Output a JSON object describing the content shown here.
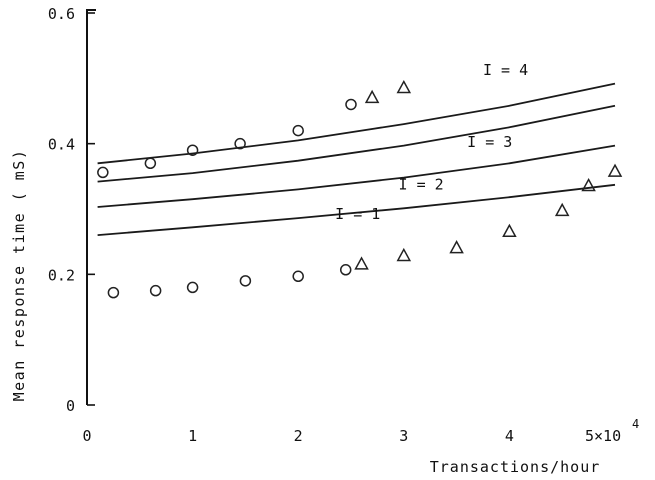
{
  "chart_data": {
    "type": "scatter",
    "xlabel": "Transactions/hour",
    "ylabel": "Mean response time ( mS)",
    "xlim": [
      0,
      5
    ],
    "ylim": [
      0,
      0.6
    ],
    "x_scale_label": "5×10",
    "x_scale_exponent": "4",
    "x_ticks": [
      {
        "value": 0,
        "label": "0"
      },
      {
        "value": 1,
        "label": "1"
      },
      {
        "value": 2,
        "label": "2"
      },
      {
        "value": 3,
        "label": "3"
      },
      {
        "value": 4,
        "label": "4"
      }
    ],
    "y_ticks": [
      {
        "value": 0,
        "label": "0"
      },
      {
        "value": 0.2,
        "label": "0.2"
      },
      {
        "value": 0.4,
        "label": "0.4"
      },
      {
        "value": 0.6,
        "label": "0.6"
      }
    ],
    "grid": false,
    "curves": [
      {
        "name": "I = 1",
        "label_at": [
          2.35,
          0.285
        ],
        "x": [
          0.1,
          1,
          2,
          3,
          4,
          5
        ],
        "y": [
          0.26,
          0.272,
          0.286,
          0.301,
          0.318,
          0.337
        ]
      },
      {
        "name": "I = 2",
        "label_at": [
          2.95,
          0.33
        ],
        "x": [
          0.1,
          1,
          2,
          3,
          4,
          5
        ],
        "y": [
          0.303,
          0.315,
          0.33,
          0.348,
          0.37,
          0.397
        ]
      },
      {
        "name": "I = 3",
        "label_at": [
          3.6,
          0.395
        ],
        "x": [
          0.1,
          1,
          2,
          3,
          4,
          5
        ],
        "y": [
          0.342,
          0.355,
          0.374,
          0.397,
          0.425,
          0.458
        ]
      },
      {
        "name": "I = 4",
        "label_at": [
          3.75,
          0.505
        ],
        "x": [
          0.1,
          1,
          2,
          3,
          4,
          5
        ],
        "y": [
          0.37,
          0.385,
          0.405,
          0.43,
          0.458,
          0.492
        ]
      }
    ],
    "series": [
      {
        "marker": "circle",
        "x": [
          0.15,
          0.6,
          1.0,
          1.45,
          2.0,
          2.5
        ],
        "y": [
          0.356,
          0.37,
          0.39,
          0.4,
          0.42,
          0.46
        ]
      },
      {
        "marker": "triangle",
        "x": [
          2.7,
          3.0
        ],
        "y": [
          0.47,
          0.485
        ]
      },
      {
        "marker": "circle",
        "x": [
          0.25,
          0.65,
          1.0,
          1.5,
          2.0,
          2.45
        ],
        "y": [
          0.172,
          0.175,
          0.18,
          0.19,
          0.197,
          0.207
        ]
      },
      {
        "marker": "triangle",
        "x": [
          2.6,
          3.0,
          3.5,
          4.0,
          4.5,
          4.75,
          5.0
        ],
        "y": [
          0.215,
          0.228,
          0.24,
          0.265,
          0.297,
          0.335,
          0.357
        ]
      }
    ]
  }
}
